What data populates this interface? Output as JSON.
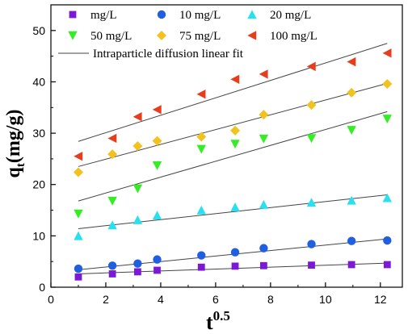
{
  "chart_data": {
    "type": "scatter",
    "title": "",
    "xlabel": "t",
    "xlabel_sup": "0.5",
    "ylabel_main": "q",
    "ylabel_sub": "t",
    "ylabel_unit": "(mg/g)",
    "xlim": [
      0,
      12.8
    ],
    "ylim": [
      0,
      55
    ],
    "xticks": [
      0,
      2,
      4,
      6,
      8,
      10,
      12
    ],
    "yticks": [
      0,
      10,
      20,
      30,
      40,
      50
    ],
    "x": [
      1.0,
      2.24,
      3.16,
      3.87,
      5.48,
      6.71,
      7.75,
      9.49,
      10.95,
      12.25
    ],
    "legend_position": "top-left",
    "fit_label": "Intraparticle diffusion linear fit",
    "fit_color": "#444444",
    "series": [
      {
        "name": "mg/L",
        "marker": "square",
        "color": "#7B19D6",
        "values": [
          2.0,
          2.6,
          3.0,
          3.3,
          3.9,
          4.1,
          4.2,
          4.3,
          4.4,
          4.4
        ],
        "fit": [
          2.6,
          4.7
        ]
      },
      {
        "name": "10 mg/L",
        "marker": "circle",
        "color": "#1F5FE0",
        "values": [
          3.6,
          4.2,
          4.6,
          5.4,
          6.2,
          6.8,
          7.6,
          8.4,
          9.0,
          9.1
        ],
        "fit": [
          3.4,
          9.4
        ]
      },
      {
        "name": "20 mg/L",
        "marker": "triangle-up",
        "color": "#29E0F0",
        "values": [
          10.0,
          12.1,
          13.1,
          14.0,
          15.0,
          15.6,
          16.1,
          16.5,
          16.9,
          17.4
        ],
        "fit": [
          11.4,
          18.0
        ]
      },
      {
        "name": "50 mg/L",
        "marker": "triangle-down",
        "color": "#33EE22",
        "values": [
          14.3,
          16.8,
          19.2,
          23.7,
          26.9,
          27.9,
          28.9,
          29.0,
          30.6,
          32.8
        ],
        "fit": [
          16.8,
          34.2
        ]
      },
      {
        "name": "75 mg/L",
        "marker": "diamond",
        "color": "#F2C21F",
        "values": [
          22.4,
          25.9,
          27.5,
          28.5,
          29.3,
          30.5,
          33.6,
          35.5,
          37.9,
          39.6
        ],
        "fit": [
          23.5,
          39.7
        ]
      },
      {
        "name": "100 mg/L",
        "marker": "triangle-left",
        "color": "#E63D1C",
        "values": [
          25.5,
          29.0,
          33.2,
          34.6,
          37.6,
          40.5,
          41.5,
          43.0,
          43.9,
          45.6
        ],
        "fit": [
          28.4,
          47.5
        ]
      }
    ]
  }
}
